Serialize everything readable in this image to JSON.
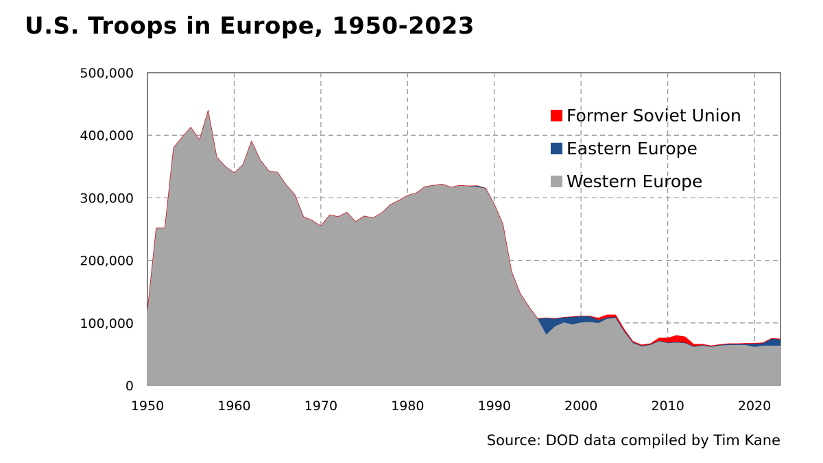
{
  "chart_data": {
    "type": "area",
    "stacked": true,
    "title": "U.S. Troops in Europe, 1950-2023",
    "source": "Source: DOD data compiled by Tim Kane",
    "xlabel": "",
    "ylabel": "",
    "xlim": [
      1950,
      2023
    ],
    "ylim": [
      0,
      500000
    ],
    "x_ticks": [
      1950,
      1960,
      1970,
      1980,
      1990,
      2000,
      2010,
      2020
    ],
    "y_ticks": [
      0,
      100000,
      200000,
      300000,
      400000,
      500000
    ],
    "y_tick_labels": [
      "0",
      "100,000",
      "200,000",
      "300,000",
      "400,000",
      "500,000"
    ],
    "grid": true,
    "legend_position": "top-right",
    "legend_order": [
      "Former Soviet Union",
      "Eastern Europe",
      "Western Europe"
    ],
    "x": [
      1950,
      1951,
      1952,
      1953,
      1954,
      1955,
      1956,
      1957,
      1958,
      1959,
      1960,
      1961,
      1962,
      1963,
      1964,
      1965,
      1966,
      1967,
      1968,
      1969,
      1970,
      1971,
      1972,
      1973,
      1974,
      1975,
      1976,
      1977,
      1978,
      1979,
      1980,
      1981,
      1982,
      1983,
      1984,
      1985,
      1986,
      1987,
      1988,
      1989,
      1990,
      1991,
      1992,
      1993,
      1994,
      1995,
      1996,
      1997,
      1998,
      1999,
      2000,
      2001,
      2002,
      2003,
      2004,
      2005,
      2006,
      2007,
      2008,
      2009,
      2010,
      2011,
      2012,
      2013,
      2014,
      2015,
      2016,
      2017,
      2018,
      2019,
      2020,
      2021,
      2022,
      2023
    ],
    "series": [
      {
        "name": "Western Europe",
        "color": "#a6a6a6",
        "values": [
          120000,
          252000,
          252000,
          380000,
          397000,
          413000,
          393000,
          440000,
          365000,
          350000,
          340000,
          353000,
          391000,
          361000,
          343000,
          341000,
          321000,
          305000,
          270000,
          264000,
          255000,
          273000,
          270000,
          277000,
          262000,
          271000,
          268000,
          276000,
          289000,
          296000,
          304000,
          308000,
          318000,
          320000,
          322000,
          317000,
          320000,
          319000,
          318000,
          315000,
          290000,
          258000,
          182000,
          147000,
          126000,
          107000,
          82000,
          95000,
          101000,
          98000,
          101000,
          102000,
          100000,
          107000,
          108000,
          86000,
          68000,
          63000,
          65000,
          71000,
          68000,
          69000,
          68000,
          62000,
          64000,
          62000,
          64000,
          65000,
          65000,
          65000,
          62000,
          64000,
          64000,
          64000
        ]
      },
      {
        "name": "Eastern Europe",
        "color": "#1f4e8c",
        "values": [
          0,
          0,
          0,
          0,
          0,
          0,
          0,
          0,
          0,
          0,
          0,
          0,
          0,
          0,
          0,
          0,
          0,
          0,
          0,
          0,
          0,
          0,
          0,
          0,
          0,
          0,
          0,
          0,
          0,
          0,
          0,
          0,
          0,
          0,
          0,
          0,
          0,
          0,
          1500,
          500,
          0,
          0,
          0,
          0,
          0,
          0,
          26000,
          12000,
          8000,
          12000,
          10000,
          9000,
          5000,
          2000,
          2000,
          1500,
          1500,
          1000,
          1000,
          1000,
          1000,
          1000,
          1000,
          1000,
          1000,
          1000,
          1000,
          1500,
          1500,
          2000,
          5000,
          4000,
          11000,
          10000
        ]
      },
      {
        "name": "Former Soviet Union",
        "color": "#ff0000",
        "values": [
          0,
          0,
          0,
          0,
          0,
          0,
          0,
          0,
          0,
          0,
          0,
          0,
          0,
          0,
          0,
          0,
          0,
          0,
          0,
          0,
          0,
          0,
          0,
          0,
          0,
          0,
          0,
          0,
          0,
          0,
          0,
          0,
          0,
          0,
          0,
          0,
          0,
          0,
          0,
          0,
          0,
          0,
          0,
          0,
          0,
          0,
          0,
          0,
          0,
          0,
          0,
          0,
          3000,
          4000,
          3000,
          2000,
          1000,
          1000,
          1000,
          4000,
          7000,
          10000,
          9000,
          3000,
          1000,
          500,
          500,
          500,
          500,
          500,
          500,
          500,
          500,
          500
        ]
      }
    ]
  }
}
